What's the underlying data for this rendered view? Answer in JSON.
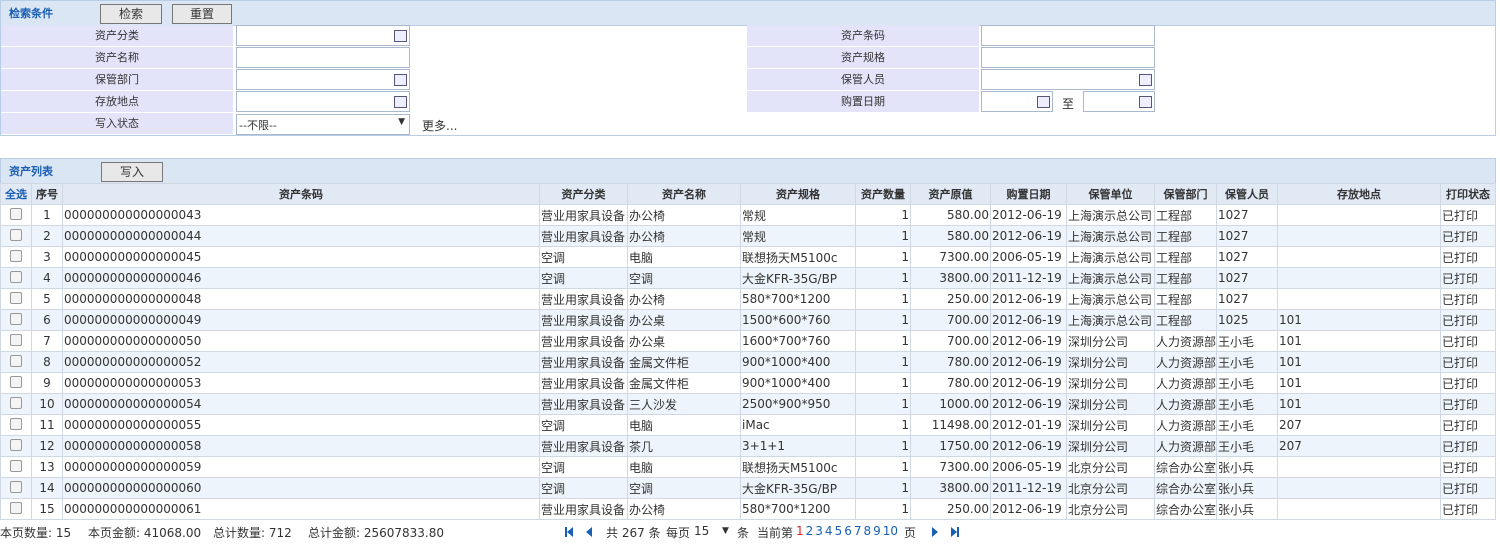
{
  "search": {
    "title": "检索条件",
    "buttons": [
      "检索",
      "重置"
    ],
    "left_labels": [
      "资产分类",
      "资产名称",
      "保管部门",
      "存放地点",
      "写入状态"
    ],
    "right_labels": [
      "资产条码",
      "资产规格",
      "保管人员",
      "购置日期"
    ],
    "status_select": "--不限--",
    "more": "更多...",
    "date_to": "至"
  },
  "list": {
    "title": "资产列表",
    "button": "写入",
    "select_all": "全选",
    "columns": [
      "序号",
      "资产条码",
      "资产分类",
      "资产名称",
      "资产规格",
      "资产数量",
      "资产原值",
      "购置日期",
      "保管单位",
      "保管部门",
      "保管人员",
      "存放地点",
      "打印状态"
    ],
    "rows": [
      [
        "1",
        "000000000000000043",
        "营业用家具设备",
        "办公椅",
        "常规",
        "1",
        "580.00",
        "2012-06-19",
        "上海演示总公司",
        "工程部",
        "1027",
        null,
        "已打印"
      ],
      [
        "2",
        "000000000000000044",
        "营业用家具设备",
        "办公椅",
        "常规",
        "1",
        "580.00",
        "2012-06-19",
        "上海演示总公司",
        "工程部",
        "1027",
        null,
        "已打印"
      ],
      [
        "3",
        "000000000000000045",
        "空调",
        "电脑",
        "联想扬天M5100c",
        "1",
        "7300.00",
        "2006-05-19",
        "上海演示总公司",
        "工程部",
        "1027",
        null,
        "已打印"
      ],
      [
        "4",
        "000000000000000046",
        "空调",
        "空调",
        "大金KFR-35G/BP",
        "1",
        "3800.00",
        "2011-12-19",
        "上海演示总公司",
        "工程部",
        "1027",
        null,
        "已打印"
      ],
      [
        "5",
        "000000000000000048",
        "营业用家具设备",
        "办公椅",
        "580*700*1200",
        "1",
        "250.00",
        "2012-06-19",
        "上海演示总公司",
        "工程部",
        "1027",
        null,
        "已打印"
      ],
      [
        "6",
        "000000000000000049",
        "营业用家具设备",
        "办公桌",
        "1500*600*760",
        "1",
        "700.00",
        "2012-06-19",
        "上海演示总公司",
        "工程部",
        "1025",
        "101",
        "已打印"
      ],
      [
        "7",
        "000000000000000050",
        "营业用家具设备",
        "办公桌",
        "1600*700*760",
        "1",
        "700.00",
        "2012-06-19",
        "深圳分公司",
        "人力资源部",
        "王小毛",
        "101",
        "已打印"
      ],
      [
        "8",
        "000000000000000052",
        "营业用家具设备",
        "金属文件柜",
        "900*1000*400",
        "1",
        "780.00",
        "2012-06-19",
        "深圳分公司",
        "人力资源部",
        "王小毛",
        "101",
        "已打印"
      ],
      [
        "9",
        "000000000000000053",
        "营业用家具设备",
        "金属文件柜",
        "900*1000*400",
        "1",
        "780.00",
        "2012-06-19",
        "深圳分公司",
        "人力资源部",
        "王小毛",
        "101",
        "已打印"
      ],
      [
        "10",
        "000000000000000054",
        "营业用家具设备",
        "三人沙发",
        "2500*900*950",
        "1",
        "1000.00",
        "2012-06-19",
        "深圳分公司",
        "人力资源部",
        "王小毛",
        "101",
        "已打印"
      ],
      [
        "11",
        "000000000000000055",
        "空调",
        "电脑",
        "iMac",
        "1",
        "11498.00",
        "2012-01-19",
        "深圳分公司",
        "人力资源部",
        "王小毛",
        "207",
        "已打印"
      ],
      [
        "12",
        "000000000000000058",
        "营业用家具设备",
        "茶几",
        "3+1+1",
        "1",
        "1750.00",
        "2012-06-19",
        "深圳分公司",
        "人力资源部",
        "王小毛",
        "207",
        "已打印"
      ],
      [
        "13",
        "000000000000000059",
        "空调",
        "电脑",
        "联想扬天M5100c",
        "1",
        "7300.00",
        "2006-05-19",
        "北京分公司",
        "综合办公室",
        "张小兵",
        null,
        "已打印"
      ],
      [
        "14",
        "000000000000000060",
        "空调",
        "空调",
        "大金KFR-35G/BP",
        "1",
        "3800.00",
        "2011-12-19",
        "北京分公司",
        "综合办公室",
        "张小兵",
        null,
        "已打印"
      ],
      [
        "15",
        "000000000000000061",
        "营业用家具设备",
        "办公椅",
        "580*700*1200",
        "1",
        "250.00",
        "2012-06-19",
        "北京分公司",
        "综合办公室",
        "张小兵",
        null,
        "已打印"
      ]
    ]
  },
  "footer": {
    "stats": [
      "本页数量: 15",
      "本页金额: 41068.00",
      "总计数量: 712",
      "总计金额: 25607833.80"
    ],
    "total": "共 267 条",
    "per_page": "每页",
    "page_size": "15",
    "unit": "条",
    "current": "当前第",
    "pages": [
      "1",
      "2",
      "3",
      "4",
      "5",
      "6",
      "7",
      "8",
      "9",
      "10"
    ],
    "page_unit": "页"
  }
}
